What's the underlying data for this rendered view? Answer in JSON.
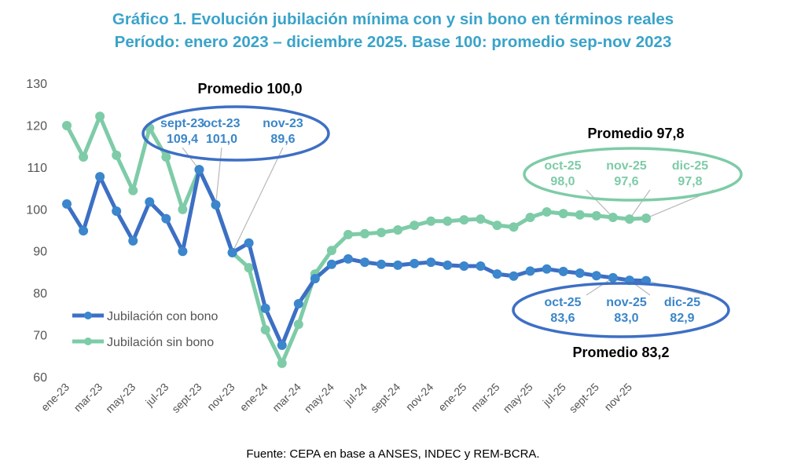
{
  "chart_data": {
    "type": "line",
    "title": "Gráfico 1. Evolución jubilación mínima con y sin bono en términos reales",
    "subtitle": "Período: enero 2023 – diciembre 2025. Base 100: promedio sep-nov 2023",
    "ylim": [
      60,
      130
    ],
    "yticks": [
      60,
      70,
      80,
      90,
      100,
      110,
      120,
      130
    ],
    "grid": false,
    "legend": "left-bottom",
    "x": [
      "ene-23",
      "feb-23",
      "mar-23",
      "abr-23",
      "may-23",
      "jun-23",
      "jul-23",
      "ago-23",
      "sept-23",
      "oct-23",
      "nov-23",
      "dic-23",
      "ene-24",
      "feb-24",
      "mar-24",
      "abr-24",
      "may-24",
      "jun-24",
      "jul-24",
      "ago-24",
      "sept-24",
      "oct-24",
      "nov-24",
      "dic-24",
      "ene-25",
      "feb-25",
      "mar-25",
      "abr-25",
      "may-25",
      "jun-25",
      "jul-25",
      "ago-25",
      "sept-25",
      "oct-25",
      "nov-25",
      "dic-25"
    ],
    "xtick_labels": [
      "ene-23",
      "mar-23",
      "may-23",
      "jul-23",
      "sept-23",
      "nov-23",
      "ene-24",
      "mar-24",
      "may-24",
      "jul-24",
      "sept-24",
      "nov-24",
      "ene-25",
      "mar-25",
      "may-25",
      "jul-25",
      "sept-25",
      "nov-25"
    ],
    "series": [
      {
        "name": "Jubilación con bono",
        "color": "#3d6fc4",
        "marker_color": "#3b86cc",
        "values": [
          101.2,
          94.8,
          107.7,
          99.5,
          92.4,
          101.7,
          97.7,
          89.9,
          109.4,
          101.0,
          89.6,
          91.9,
          76.3,
          67.5,
          77.4,
          83.4,
          86.8,
          88.1,
          87.3,
          86.8,
          86.6,
          87.0,
          87.3,
          86.6,
          86.4,
          86.4,
          84.5,
          84.0,
          85.2,
          85.7,
          85.1,
          84.7,
          84.1,
          83.6,
          83.0,
          82.9
        ]
      },
      {
        "name": "Jubilación sin bono",
        "color": "#7ecba8",
        "marker_color": "#7ecba8",
        "values": [
          119.9,
          112.4,
          122.1,
          112.8,
          104.4,
          119.3,
          112.4,
          99.9,
          109.4,
          101.0,
          89.6,
          86.0,
          71.2,
          63.2,
          72.5,
          84.5,
          90.1,
          93.9,
          94.1,
          94.4,
          95.0,
          96.1,
          97.1,
          97.1,
          97.4,
          97.6,
          96.1,
          95.7,
          98.0,
          99.3,
          98.9,
          98.6,
          98.4,
          98.0,
          97.6,
          97.8
        ]
      }
    ],
    "annotations": {
      "base": {
        "heading": "Promedio 100,0",
        "color": "#3d6fc4",
        "labels": [
          {
            "month": "sept-23",
            "value": "109,4"
          },
          {
            "month": "oct-23",
            "value": "101,0"
          },
          {
            "month": "nov-23",
            "value": "89,6"
          }
        ]
      },
      "sin_bono": {
        "heading": "Promedio 97,8",
        "color": "#7ecba8",
        "labels": [
          {
            "month": "oct-25",
            "value": "98,0"
          },
          {
            "month": "nov-25",
            "value": "97,6"
          },
          {
            "month": "dic-25",
            "value": "97,8"
          }
        ]
      },
      "con_bono": {
        "heading": "Promedio 83,2",
        "color": "#3d6fc4",
        "labels": [
          {
            "month": "oct-25",
            "value": "83,6"
          },
          {
            "month": "nov-25",
            "value": "83,0"
          },
          {
            "month": "dic-25",
            "value": "82,9"
          }
        ]
      }
    },
    "source": "Fuente: CEPA en base a ANSES, INDEC y REM-BCRA."
  }
}
